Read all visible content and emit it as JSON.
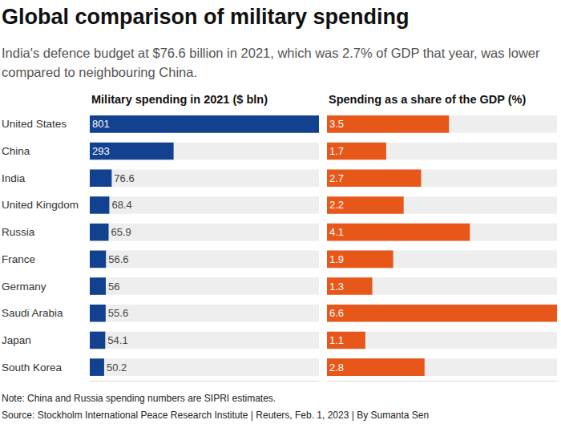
{
  "header": {
    "title": "Global comparison of military spending",
    "subtitle": "India's defence budget at $76.6 billion in 2021, which was 2.7% of GDP that year, was lower compared to neighbouring China."
  },
  "chart_data": [
    {
      "type": "bar",
      "title": "Military spending in 2021 ($ bln)",
      "orientation": "horizontal",
      "categories": [
        "United States",
        "China",
        "India",
        "United Kingdom",
        "Russia",
        "France",
        "Germany",
        "Saudi Arabia",
        "Japan",
        "South Korea"
      ],
      "values": [
        801,
        293,
        76.6,
        68.4,
        65.9,
        56.6,
        56,
        55.6,
        54.1,
        50.2
      ],
      "color": "#12418f",
      "xlim": [
        0,
        801
      ],
      "data_labels": true,
      "tick_labels": "y",
      "grid": false
    },
    {
      "type": "bar",
      "title": "Spending as a share of the GDP (%)",
      "orientation": "horizontal",
      "categories": [
        "United States",
        "China",
        "India",
        "United Kingdom",
        "Russia",
        "France",
        "Germany",
        "Saudi Arabia",
        "Japan",
        "South Korea"
      ],
      "values": [
        3.5,
        1.7,
        2.7,
        2.2,
        4.1,
        1.9,
        1.3,
        6.6,
        1.1,
        2.8
      ],
      "color": "#e8571a",
      "xlim": [
        0,
        6.6
      ],
      "data_labels": true,
      "tick_labels": false,
      "grid": false
    }
  ],
  "footer": {
    "note": "Note: China and Russia spending numbers are SIPRI estimates.",
    "source": "Source: Stockholm International Peace Research Institute | Reuters, Feb. 1, 2023 | By Sumanta Sen"
  }
}
